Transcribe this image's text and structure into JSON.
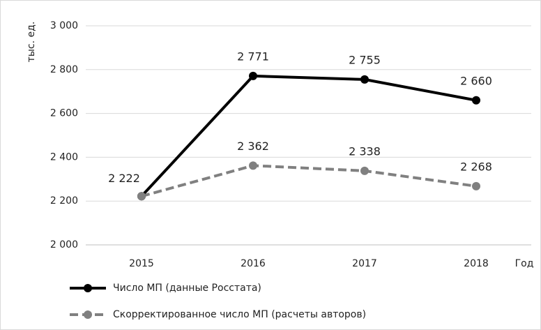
{
  "chart_data": {
    "type": "line",
    "x_label": "Год",
    "y_label": "тыс. ед.",
    "categories": [
      "2015",
      "2016",
      "2017",
      "2018"
    ],
    "series": [
      {
        "name": "Число МП (данные Росстата)",
        "color": "#000000",
        "dash": false,
        "values": [
          2222,
          2771,
          2755,
          2660
        ],
        "value_labels": [
          "2 222",
          "2 771",
          "2 755",
          "2 660"
        ]
      },
      {
        "name": "Скорректированное число МП (расчеты авторов)",
        "color": "#808080",
        "dash": true,
        "values": [
          2222,
          2362,
          2338,
          2268
        ],
        "value_labels": [
          null,
          "2 362",
          "2 338",
          "2 268"
        ]
      }
    ],
    "ylim": [
      2000,
      3000
    ],
    "yticks": [
      {
        "value": 2000,
        "label": "2 000"
      },
      {
        "value": 2200,
        "label": "2 200"
      },
      {
        "value": 2400,
        "label": "2 400"
      },
      {
        "value": 2600,
        "label": "2 600"
      },
      {
        "value": 2800,
        "label": "2 800"
      },
      {
        "value": 3000,
        "label": "3 000"
      }
    ],
    "grid": true,
    "legend": "bottom"
  }
}
